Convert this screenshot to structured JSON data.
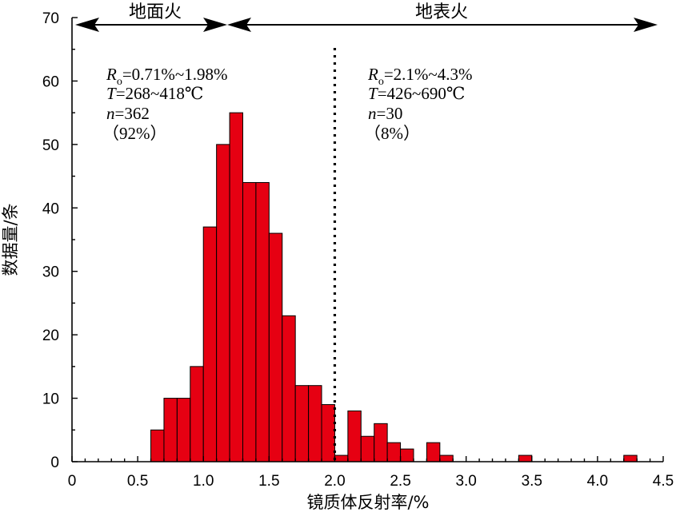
{
  "chart_data": {
    "type": "bar",
    "xlabel": "镜质体反射率/%",
    "ylabel": "数据量/条",
    "xlim": [
      0,
      4.5
    ],
    "ylim": [
      0,
      70
    ],
    "bin_width": 0.1,
    "x_ticks": [
      "0",
      "0.5",
      "1.0",
      "1.5",
      "2.0",
      "2.5",
      "3.0",
      "3.5",
      "4.0",
      "4.5"
    ],
    "y_ticks": [
      "0",
      "10",
      "20",
      "30",
      "40",
      "50",
      "60",
      "70"
    ],
    "bins": [
      {
        "x": 0.6,
        "value": 5
      },
      {
        "x": 0.7,
        "value": 10
      },
      {
        "x": 0.8,
        "value": 10
      },
      {
        "x": 0.9,
        "value": 15
      },
      {
        "x": 1.0,
        "value": 37
      },
      {
        "x": 1.1,
        "value": 50
      },
      {
        "x": 1.2,
        "value": 55
      },
      {
        "x": 1.3,
        "value": 44
      },
      {
        "x": 1.4,
        "value": 44
      },
      {
        "x": 1.5,
        "value": 36
      },
      {
        "x": 1.6,
        "value": 23
      },
      {
        "x": 1.7,
        "value": 12
      },
      {
        "x": 1.8,
        "value": 12
      },
      {
        "x": 1.9,
        "value": 9
      },
      {
        "x": 2.0,
        "value": 1
      },
      {
        "x": 2.1,
        "value": 8
      },
      {
        "x": 2.2,
        "value": 4
      },
      {
        "x": 2.3,
        "value": 6
      },
      {
        "x": 2.4,
        "value": 3
      },
      {
        "x": 2.5,
        "value": 2
      },
      {
        "x": 2.7,
        "value": 3
      },
      {
        "x": 2.8,
        "value": 1
      },
      {
        "x": 3.4,
        "value": 1
      },
      {
        "x": 4.2,
        "value": 1
      }
    ],
    "divider_x": 2.0,
    "regions": [
      {
        "label": "地面火",
        "x_start": 0,
        "x_end": 1.2
      },
      {
        "label": "地表火",
        "x_start": 1.2,
        "x_end": 4.5
      }
    ],
    "annotations": {
      "left": {
        "ro_symbol": "R",
        "ro_subscript": "o",
        "ro_value": "=0.71%~1.98%",
        "t_symbol": "T",
        "t_value": "=268~418℃",
        "n_symbol": "n",
        "n_value": "=362",
        "percent": "（92%）"
      },
      "right": {
        "ro_symbol": "R",
        "ro_subscript": "o",
        "ro_value": "=2.1%~4.3%",
        "t_symbol": "T",
        "t_value": "=426~690℃",
        "n_symbol": "n",
        "n_value": "=30",
        "percent": "（8%）"
      }
    },
    "bar_color": "#e60012",
    "grid": false
  }
}
